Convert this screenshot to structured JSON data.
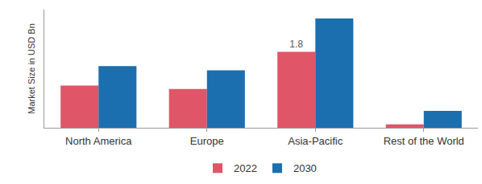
{
  "chart_data": {
    "type": "bar",
    "y_label": "Market Size in USD Bn",
    "categories": [
      "North America",
      "Europe",
      "Asia-Pacific",
      "Rest of the World"
    ],
    "series": [
      {
        "name": "2022",
        "color": "#e05567",
        "values": [
          1.0,
          0.92,
          1.8,
          0.08
        ],
        "value_labels": [
          null,
          null,
          "1.8",
          null
        ]
      },
      {
        "name": "2030",
        "color": "#1b6fae",
        "values": [
          1.46,
          1.36,
          2.59,
          0.4
        ]
      }
    ],
    "ylim": [
      0,
      2.8
    ],
    "tick_labels": "x",
    "grid": false,
    "legend": "bottom"
  }
}
